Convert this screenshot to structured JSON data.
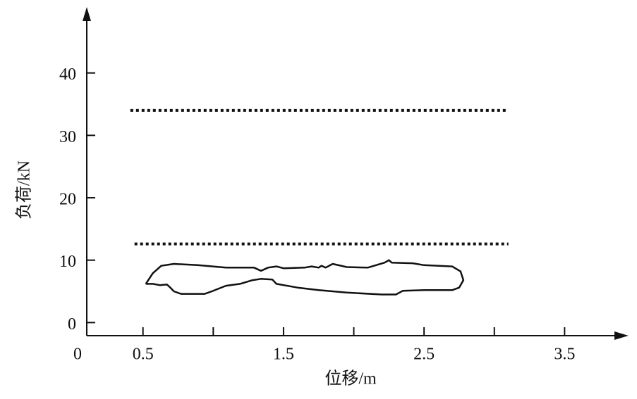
{
  "chart_data": {
    "type": "line",
    "xlabel": "位移/m",
    "ylabel": "负荷/kN",
    "origin_label": "0",
    "xlim": [
      0.1,
      3.95
    ],
    "ylim": [
      -2.1,
      50
    ],
    "xticks": [
      0.5,
      1.5,
      2.5,
      3.5
    ],
    "minor_xticks": [
      1,
      2,
      3
    ],
    "yticks": [
      0,
      10,
      20,
      30,
      40
    ],
    "series": [
      {
        "color": "#111111",
        "style": "dotted",
        "x": [
          0.41,
          3.09
        ],
        "values": [
          34,
          34
        ]
      },
      {
        "color": "#111111",
        "style": "dotted",
        "x": [
          0.44,
          3.1
        ],
        "values": [
          12.6,
          12.6
        ]
      },
      {
        "color": "#111111",
        "style": "solid",
        "x": [
          0.52,
          0.57,
          0.63,
          0.72,
          0.89,
          1.09,
          1.29,
          1.34,
          1.39,
          1.45,
          1.5,
          1.65,
          1.7,
          1.75,
          1.77,
          1.8,
          1.85,
          1.95,
          2.1,
          2.22,
          2.25,
          2.27,
          2.42,
          2.5,
          2.7,
          2.76,
          2.78,
          2.75,
          2.7,
          2.5,
          2.35,
          2.3,
          2.2,
          1.95,
          1.75,
          1.6,
          1.45,
          1.42,
          1.34,
          1.28,
          1.19,
          1.09,
          0.99,
          0.94,
          0.77,
          0.72,
          0.69,
          0.67,
          0.62,
          0.57,
          0.52
        ],
        "values": [
          6.2,
          7.9,
          9.1,
          9.4,
          9.2,
          8.8,
          8.8,
          8.3,
          8.8,
          9.0,
          8.7,
          8.8,
          9.0,
          8.8,
          9.1,
          8.8,
          9.4,
          8.9,
          8.8,
          9.6,
          10.0,
          9.6,
          9.5,
          9.2,
          9.0,
          8.2,
          6.8,
          5.6,
          5.2,
          5.2,
          5.1,
          4.5,
          4.5,
          4.8,
          5.2,
          5.6,
          6.2,
          6.9,
          7.0,
          6.8,
          6.2,
          5.9,
          5.0,
          4.6,
          4.6,
          5.0,
          5.7,
          6.1,
          6.0,
          6.2,
          6.2
        ]
      }
    ]
  }
}
